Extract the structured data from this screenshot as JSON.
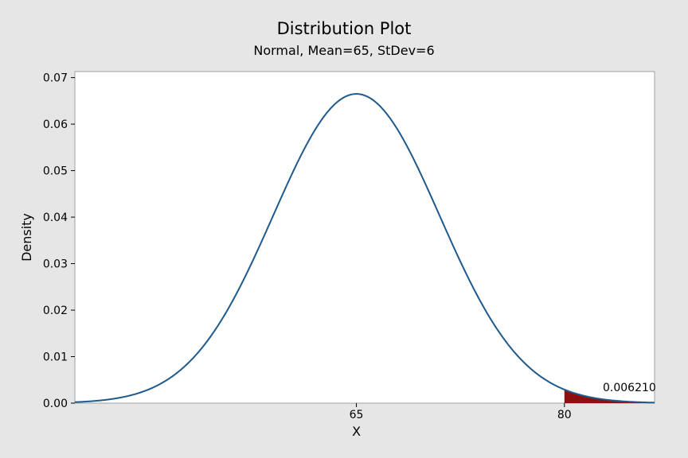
{
  "chart_data": {
    "type": "area",
    "title": "Distribution Plot",
    "subtitle": "Normal, Mean=65, StDev=6",
    "xlabel": "X",
    "ylabel": "Density",
    "distribution": {
      "name": "Normal",
      "mean": 65,
      "stdev": 6
    },
    "xlim": [
      44.7,
      86.5
    ],
    "ylim": [
      0,
      0.0713
    ],
    "x_ticks": [
      65,
      80
    ],
    "x_tick_labels": [
      "65",
      "80"
    ],
    "y_ticks": [
      0,
      0.01,
      0.02,
      0.03,
      0.04,
      0.05,
      0.06,
      0.07
    ],
    "y_tick_labels": [
      "0.00",
      "0.01",
      "0.02",
      "0.03",
      "0.04",
      "0.05",
      "0.06",
      "0.07"
    ],
    "shaded_region": {
      "from": 80,
      "to": 86.5,
      "probability_label": "0.006210"
    },
    "grid": false,
    "colors": {
      "curve": "#1f5a8c",
      "shade": "#8b1010",
      "plot_background": "#ffffff",
      "outer_background": "#e6e6e6",
      "frame": "#a0a0a0"
    }
  }
}
